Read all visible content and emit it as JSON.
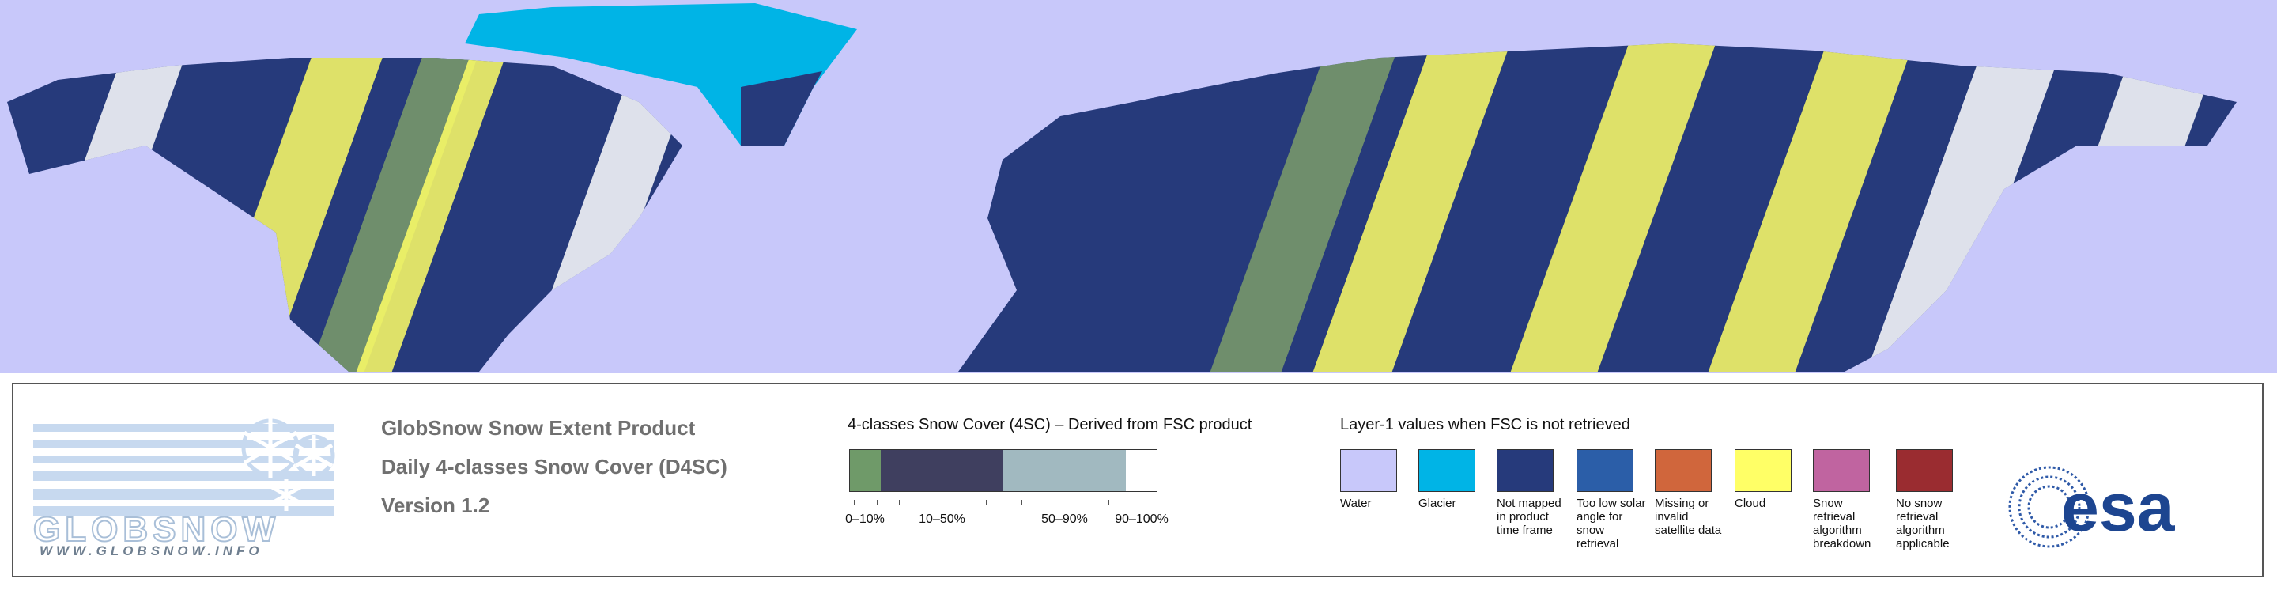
{
  "logo": {
    "name": "GLOBSNOW",
    "url": "WWW.GLOBSNOW.INFO"
  },
  "header": {
    "title": "GlobSnow Snow Extent Product",
    "subtitle": "Daily 4-classes Snow Cover (D4SC)",
    "version": "Version 1.2"
  },
  "snow_cover_legend": {
    "title": "4-classes Snow Cover (4SC) – Derived from FSC product",
    "classes": [
      {
        "label": "0–10%",
        "color": "#6f9a69"
      },
      {
        "label": "10–50%",
        "color": "#3f3f5f"
      },
      {
        "label": "50–90%",
        "color": "#a1b9c0"
      },
      {
        "label": "90–100%",
        "color": "#ffffff"
      }
    ]
  },
  "layer1_legend": {
    "title": "Layer-1 values when FSC is not retrieved",
    "items": [
      {
        "label": "Water",
        "color": "#c8c8fa"
      },
      {
        "label": "Glacier",
        "color": "#00b4e6"
      },
      {
        "label": "Not mapped in product time frame",
        "color": "#263a7b"
      },
      {
        "label": "Too low solar angle for snow retrieval",
        "color": "#2b5ea8"
      },
      {
        "label": "Missing or invalid satellite data",
        "color": "#d0663c"
      },
      {
        "label": "Cloud",
        "color": "#ffff66"
      },
      {
        "label": "Snow retrieval algorithm breakdown",
        "color": "#c064a0"
      },
      {
        "label": "No snow retrieval algorithm applicable",
        "color": "#9a2c30"
      }
    ]
  },
  "esa_logo": {
    "text": "esa"
  }
}
